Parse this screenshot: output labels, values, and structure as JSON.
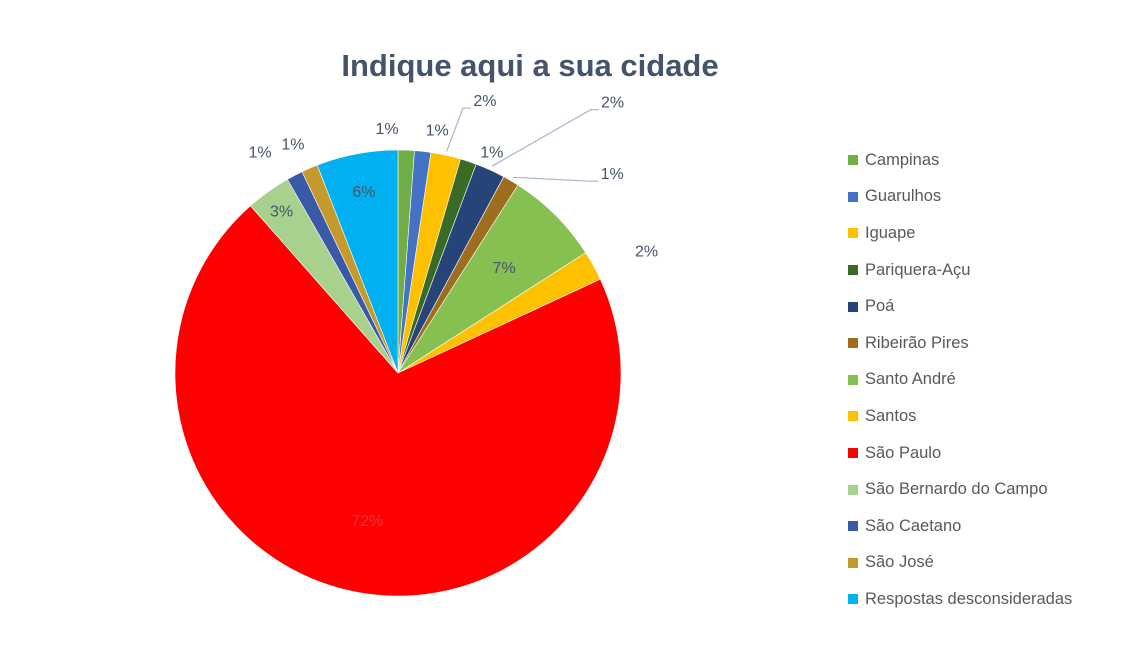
{
  "chart_data": {
    "type": "pie",
    "title": "Indique aqui a sua cidade",
    "categories": [
      "Campinas",
      "Guarulhos",
      "Iguape",
      "Pariquera-Açu",
      "Poá",
      "Ribeirão Pires",
      "Santo André",
      "Santos",
      "São Paulo",
      "São Bernardo do Campo",
      "São Caetano",
      "São José",
      "Respostas desconsideradas"
    ],
    "values": [
      1.2,
      1.2,
      2.2,
      1.2,
      2.2,
      1.2,
      7.0,
      2.2,
      71.6,
      3.3,
      1.2,
      1.2,
      6.0
    ],
    "data_labels": [
      "1%",
      "1%",
      "2%",
      "1%",
      "2%",
      "1%",
      "7%",
      "2%",
      "72%",
      "3%",
      "1%",
      "1%",
      "6%"
    ],
    "colors": [
      "#70ad47",
      "#4472c4",
      "#ffc000",
      "#3a6b26",
      "#264478",
      "#9e6e1e",
      "#86c050",
      "#ffc000",
      "#ff0000",
      "#a9d18e",
      "#3a5aa8",
      "#c49a2c",
      "#00b0f0"
    ],
    "legend_position": "right"
  }
}
